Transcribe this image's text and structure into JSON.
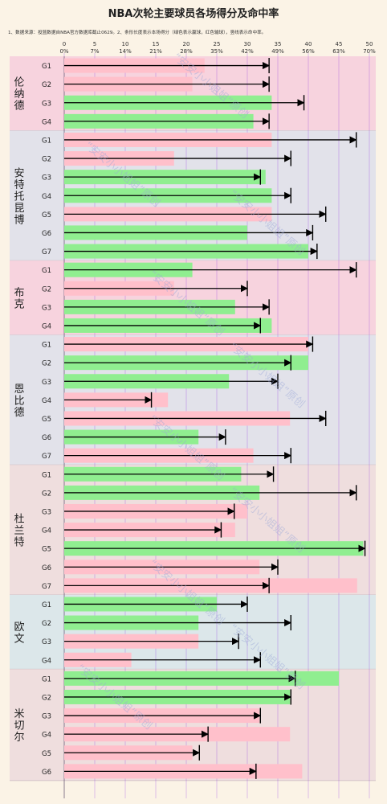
{
  "title": "NBA次轮主要球员各场得分及命中率",
  "note": "1、数据来源：投篮数据自NBA官方数据库截止0629。2、条形长度表示本场得分（绿色表示赢球，红色输球），竖线表示命中率。",
  "watermark": "“安安小小姐姐”原创",
  "colors": {
    "win": "#90ee90",
    "loss": "#ffc0cb",
    "arrow": "#000000",
    "grid": "#8a2be2"
  },
  "chart_data": {
    "type": "bar",
    "orientation": "horizontal",
    "xlim": [
      0,
      50
    ],
    "x_ticks_points": [
      0,
      5,
      10,
      15,
      20,
      25,
      30,
      35,
      40,
      45,
      50
    ],
    "x_ticks_pct": [
      "0%",
      "7%",
      "14%",
      "21%",
      "28%",
      "35%",
      "42%",
      "49%",
      "56%",
      "63%",
      "70%"
    ],
    "grid": true,
    "players": [
      {
        "name": "伦纳德",
        "games": [
          {
            "game": "G1",
            "points": 23,
            "result": "loss",
            "fg_pct": 0.47
          },
          {
            "game": "G2",
            "points": 21,
            "result": "loss",
            "fg_pct": 0.47
          },
          {
            "game": "G3",
            "points": 34,
            "result": "win",
            "fg_pct": 0.55
          },
          {
            "game": "G4",
            "points": 31,
            "result": "win",
            "fg_pct": 0.47
          }
        ]
      },
      {
        "name": "安特托昆博",
        "games": [
          {
            "game": "G1",
            "points": 34,
            "result": "loss",
            "fg_pct": 0.67
          },
          {
            "game": "G2",
            "points": 18,
            "result": "loss",
            "fg_pct": 0.52
          },
          {
            "game": "G3",
            "points": 33,
            "result": "win",
            "fg_pct": 0.45
          },
          {
            "game": "G4",
            "points": 34,
            "result": "win",
            "fg_pct": 0.52
          },
          {
            "game": "G5",
            "points": 34,
            "result": "loss",
            "fg_pct": 0.6
          },
          {
            "game": "G6",
            "points": 30,
            "result": "win",
            "fg_pct": 0.57
          },
          {
            "game": "G7",
            "points": 40,
            "result": "win",
            "fg_pct": 0.58
          }
        ]
      },
      {
        "name": "布克",
        "games": [
          {
            "game": "G1",
            "points": 21,
            "result": "win",
            "fg_pct": 0.67
          },
          {
            "game": "G2",
            "points": 18,
            "result": "loss",
            "fg_pct": 0.42
          },
          {
            "game": "G3",
            "points": 28,
            "result": "win",
            "fg_pct": 0.47
          },
          {
            "game": "G4",
            "points": 34,
            "result": "win",
            "fg_pct": 0.45
          }
        ]
      },
      {
        "name": "恩比德",
        "games": [
          {
            "game": "G1",
            "points": 40,
            "result": "loss",
            "fg_pct": 0.57
          },
          {
            "game": "G2",
            "points": 40,
            "result": "win",
            "fg_pct": 0.52
          },
          {
            "game": "G3",
            "points": 27,
            "result": "win",
            "fg_pct": 0.49
          },
          {
            "game": "G4",
            "points": 17,
            "result": "loss",
            "fg_pct": 0.2
          },
          {
            "game": "G5",
            "points": 37,
            "result": "loss",
            "fg_pct": 0.6
          },
          {
            "game": "G6",
            "points": 22,
            "result": "win",
            "fg_pct": 0.37
          },
          {
            "game": "G7",
            "points": 31,
            "result": "loss",
            "fg_pct": 0.52
          }
        ]
      },
      {
        "name": "杜兰特",
        "games": [
          {
            "game": "G1",
            "points": 29,
            "result": "win",
            "fg_pct": 0.48
          },
          {
            "game": "G2",
            "points": 32,
            "result": "win",
            "fg_pct": 0.67
          },
          {
            "game": "G3",
            "points": 30,
            "result": "loss",
            "fg_pct": 0.39
          },
          {
            "game": "G4",
            "points": 28,
            "result": "loss",
            "fg_pct": 0.36
          },
          {
            "game": "G5",
            "points": 49,
            "result": "win",
            "fg_pct": 0.69
          },
          {
            "game": "G6",
            "points": 32,
            "result": "loss",
            "fg_pct": 0.49
          },
          {
            "game": "G7",
            "points": 48,
            "result": "loss",
            "fg_pct": 0.47
          }
        ]
      },
      {
        "name": "欧文",
        "games": [
          {
            "game": "G1",
            "points": 25,
            "result": "win",
            "fg_pct": 0.42
          },
          {
            "game": "G2",
            "points": 22,
            "result": "win",
            "fg_pct": 0.52
          },
          {
            "game": "G3",
            "points": 22,
            "result": "loss",
            "fg_pct": 0.4
          },
          {
            "game": "G4",
            "points": 11,
            "result": "loss",
            "fg_pct": 0.45
          }
        ]
      },
      {
        "name": "米切尔",
        "games": [
          {
            "game": "G1",
            "points": 45,
            "result": "win",
            "fg_pct": 0.53
          },
          {
            "game": "G2",
            "points": 37,
            "result": "win",
            "fg_pct": 0.52
          },
          {
            "game": "G3",
            "points": 32,
            "result": "loss",
            "fg_pct": 0.45
          },
          {
            "game": "G4",
            "points": 37,
            "result": "loss",
            "fg_pct": 0.33
          },
          {
            "game": "G5",
            "points": 21,
            "result": "loss",
            "fg_pct": 0.31
          },
          {
            "game": "G6",
            "points": 39,
            "result": "loss",
            "fg_pct": 0.44
          }
        ]
      }
    ]
  }
}
